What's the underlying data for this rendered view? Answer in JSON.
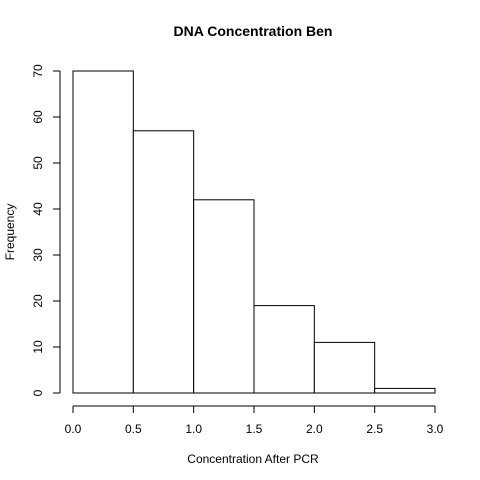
{
  "chart_data": {
    "type": "bar",
    "title": "DNA Concentration Ben",
    "xlabel": "Concentration After PCR",
    "ylabel": "Frequency",
    "bins": [
      {
        "start": 0.0,
        "end": 0.5,
        "count": 70
      },
      {
        "start": 0.5,
        "end": 1.0,
        "count": 57
      },
      {
        "start": 1.0,
        "end": 1.5,
        "count": 42
      },
      {
        "start": 1.5,
        "end": 2.0,
        "count": 19
      },
      {
        "start": 2.0,
        "end": 2.5,
        "count": 11
      },
      {
        "start": 2.5,
        "end": 3.0,
        "count": 1
      }
    ],
    "xlim": [
      0,
      3
    ],
    "ylim": [
      0,
      70
    ],
    "x_ticks": [
      "0.0",
      "0.5",
      "1.0",
      "1.5",
      "2.0",
      "2.5",
      "3.0"
    ],
    "y_ticks": [
      "0",
      "10",
      "20",
      "30",
      "40",
      "50",
      "60",
      "70"
    ],
    "grid": false,
    "legend": "none"
  }
}
